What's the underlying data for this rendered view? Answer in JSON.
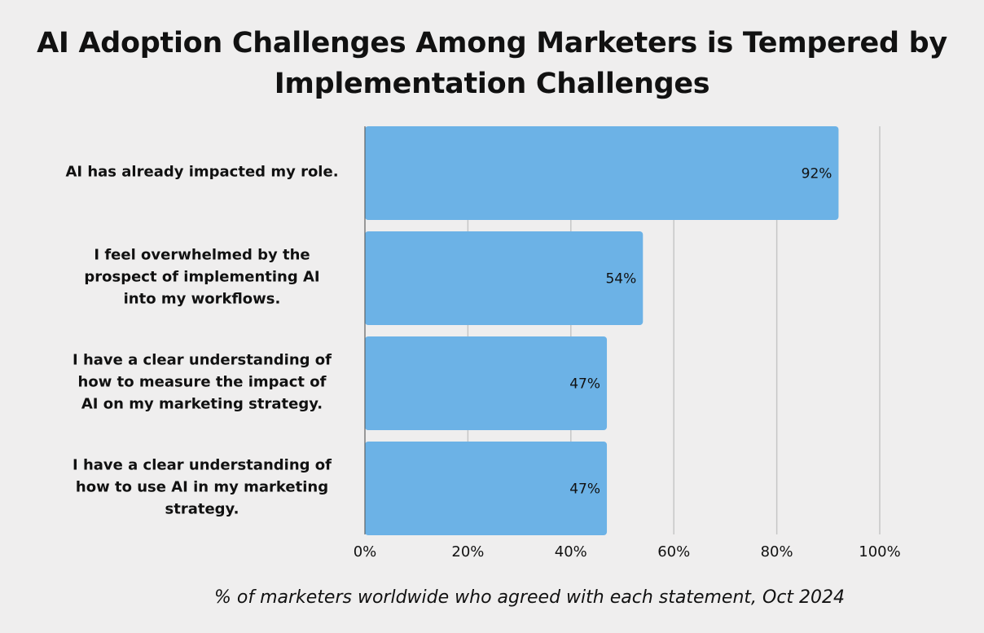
{
  "chart_data": {
    "type": "bar",
    "orientation": "horizontal",
    "title": "AI Adoption Challenges Among Marketers is Tempered by Implementation Challenges",
    "title_lines": [
      "AI Adoption Challenges Among Marketers is Tempered by",
      "Implementation Challenges"
    ],
    "categories": [
      "AI has already impacted my role.",
      "I feel overwhelmed by the prospect of implementing AI into my workflows.",
      "I have a clear understanding of how to measure the impact of AI on my marketing strategy.",
      "I have a clear understanding of how to use AI in my marketing strategy."
    ],
    "category_lines": [
      [
        "AI has already impacted my role."
      ],
      [
        "I feel overwhelmed by the",
        "prospect of implementing AI",
        "into my workflows."
      ],
      [
        "I have a clear understanding of",
        "how to measure the impact of",
        "AI on my marketing strategy."
      ],
      [
        "I have a clear understanding of",
        "how to use AI in my marketing",
        "strategy."
      ]
    ],
    "values": [
      92,
      54,
      47,
      47
    ],
    "data_labels": [
      "92%",
      "54%",
      "47%",
      "47%"
    ],
    "xlim": [
      0,
      100
    ],
    "xticks": [
      0,
      20,
      40,
      60,
      80,
      100
    ],
    "xtick_labels": [
      "0%",
      "20%",
      "40%",
      "60%",
      "80%",
      "100%"
    ],
    "xlabel": "% of marketers worldwide who agreed with each statement, Oct 2024",
    "ylabel": "",
    "grid": true,
    "bar_color": "#6cb2e6",
    "grid_color": "#c6c6c6"
  }
}
